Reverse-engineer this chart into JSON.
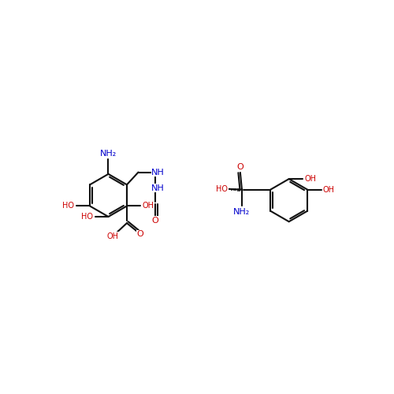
{
  "bg_color": "#ffffff",
  "bond_color": "#111111",
  "hetero_color": "#cc0000",
  "nitrogen_color": "#0000cc",
  "figsize": [
    5.0,
    5.0
  ],
  "dpi": 100,
  "xlim": [
    -1.0,
    11.0
  ],
  "ylim": [
    -3.2,
    3.2
  ],
  "lw": 1.5,
  "fs": 8.0,
  "fss": 7.0
}
